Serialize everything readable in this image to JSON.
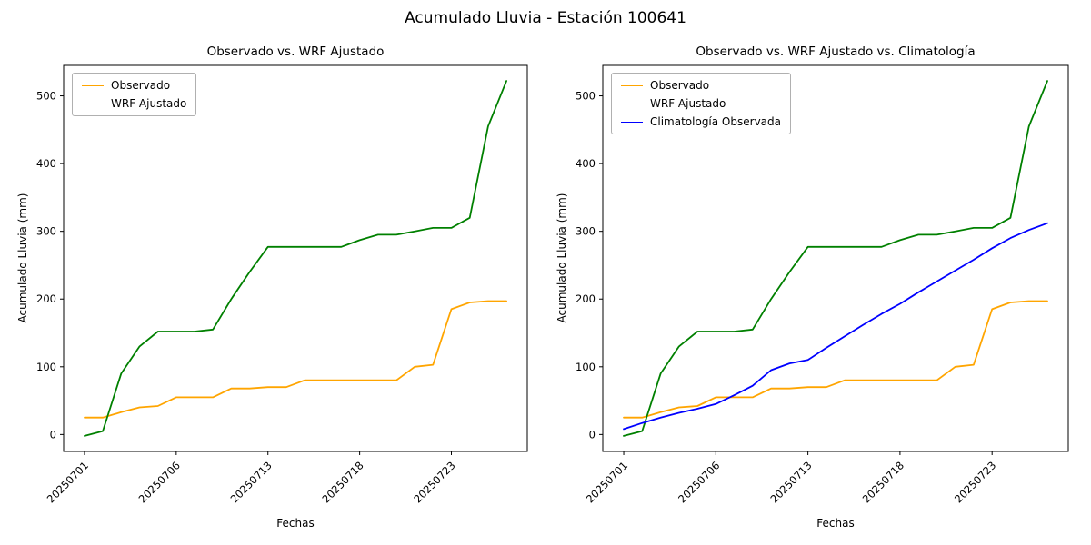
{
  "figure": {
    "title": "Acumulado Lluvia - Estación 100641"
  },
  "chart_data": [
    {
      "type": "line",
      "title": "Observado vs. WRF Ajustado",
      "xlabel": "Fechas",
      "ylabel": "Acumulado Lluvia (mm)",
      "ylim": [
        -25,
        545
      ],
      "yticks": [
        0,
        100,
        200,
        300,
        400,
        500
      ],
      "xtick_positions": [
        0,
        5,
        10,
        15,
        20
      ],
      "xtick_labels": [
        "20250701",
        "20250706",
        "20250713",
        "20250718",
        "20250723"
      ],
      "legend_position": "upper left",
      "grid": false,
      "series": [
        {
          "name": "Observado",
          "color": "#ffa500",
          "values": [
            25,
            25,
            33,
            40,
            42,
            55,
            55,
            55,
            68,
            68,
            70,
            70,
            80,
            80,
            80,
            80,
            80,
            80,
            100,
            103,
            185,
            195,
            197,
            197
          ]
        },
        {
          "name": "WRF Ajustado",
          "color": "#008000",
          "values": [
            -2,
            5,
            90,
            130,
            152,
            152,
            152,
            155,
            200,
            240,
            277,
            277,
            277,
            277,
            277,
            287,
            295,
            295,
            300,
            305,
            305,
            320,
            455,
            522
          ]
        }
      ]
    },
    {
      "type": "line",
      "title": "Observado vs. WRF Ajustado vs. Climatología",
      "xlabel": "Fechas",
      "ylabel": "Acumulado Lluvia (mm)",
      "ylim": [
        -25,
        545
      ],
      "yticks": [
        0,
        100,
        200,
        300,
        400,
        500
      ],
      "xtick_positions": [
        0,
        5,
        10,
        15,
        20
      ],
      "xtick_labels": [
        "20250701",
        "20250706",
        "20250713",
        "20250718",
        "20250723"
      ],
      "legend_position": "upper left",
      "grid": false,
      "series": [
        {
          "name": "Observado",
          "color": "#ffa500",
          "values": [
            25,
            25,
            33,
            40,
            42,
            55,
            55,
            55,
            68,
            68,
            70,
            70,
            80,
            80,
            80,
            80,
            80,
            80,
            100,
            103,
            185,
            195,
            197,
            197
          ]
        },
        {
          "name": "WRF Ajustado",
          "color": "#008000",
          "values": [
            -2,
            5,
            90,
            130,
            152,
            152,
            152,
            155,
            200,
            240,
            277,
            277,
            277,
            277,
            277,
            287,
            295,
            295,
            300,
            305,
            305,
            320,
            455,
            522
          ]
        },
        {
          "name": "Climatología Observada",
          "color": "#0000ff",
          "values": [
            8,
            17,
            25,
            32,
            38,
            45,
            58,
            72,
            95,
            105,
            110,
            128,
            145,
            162,
            178,
            193,
            210,
            226,
            242,
            258,
            275,
            290,
            302,
            312
          ]
        }
      ]
    }
  ]
}
